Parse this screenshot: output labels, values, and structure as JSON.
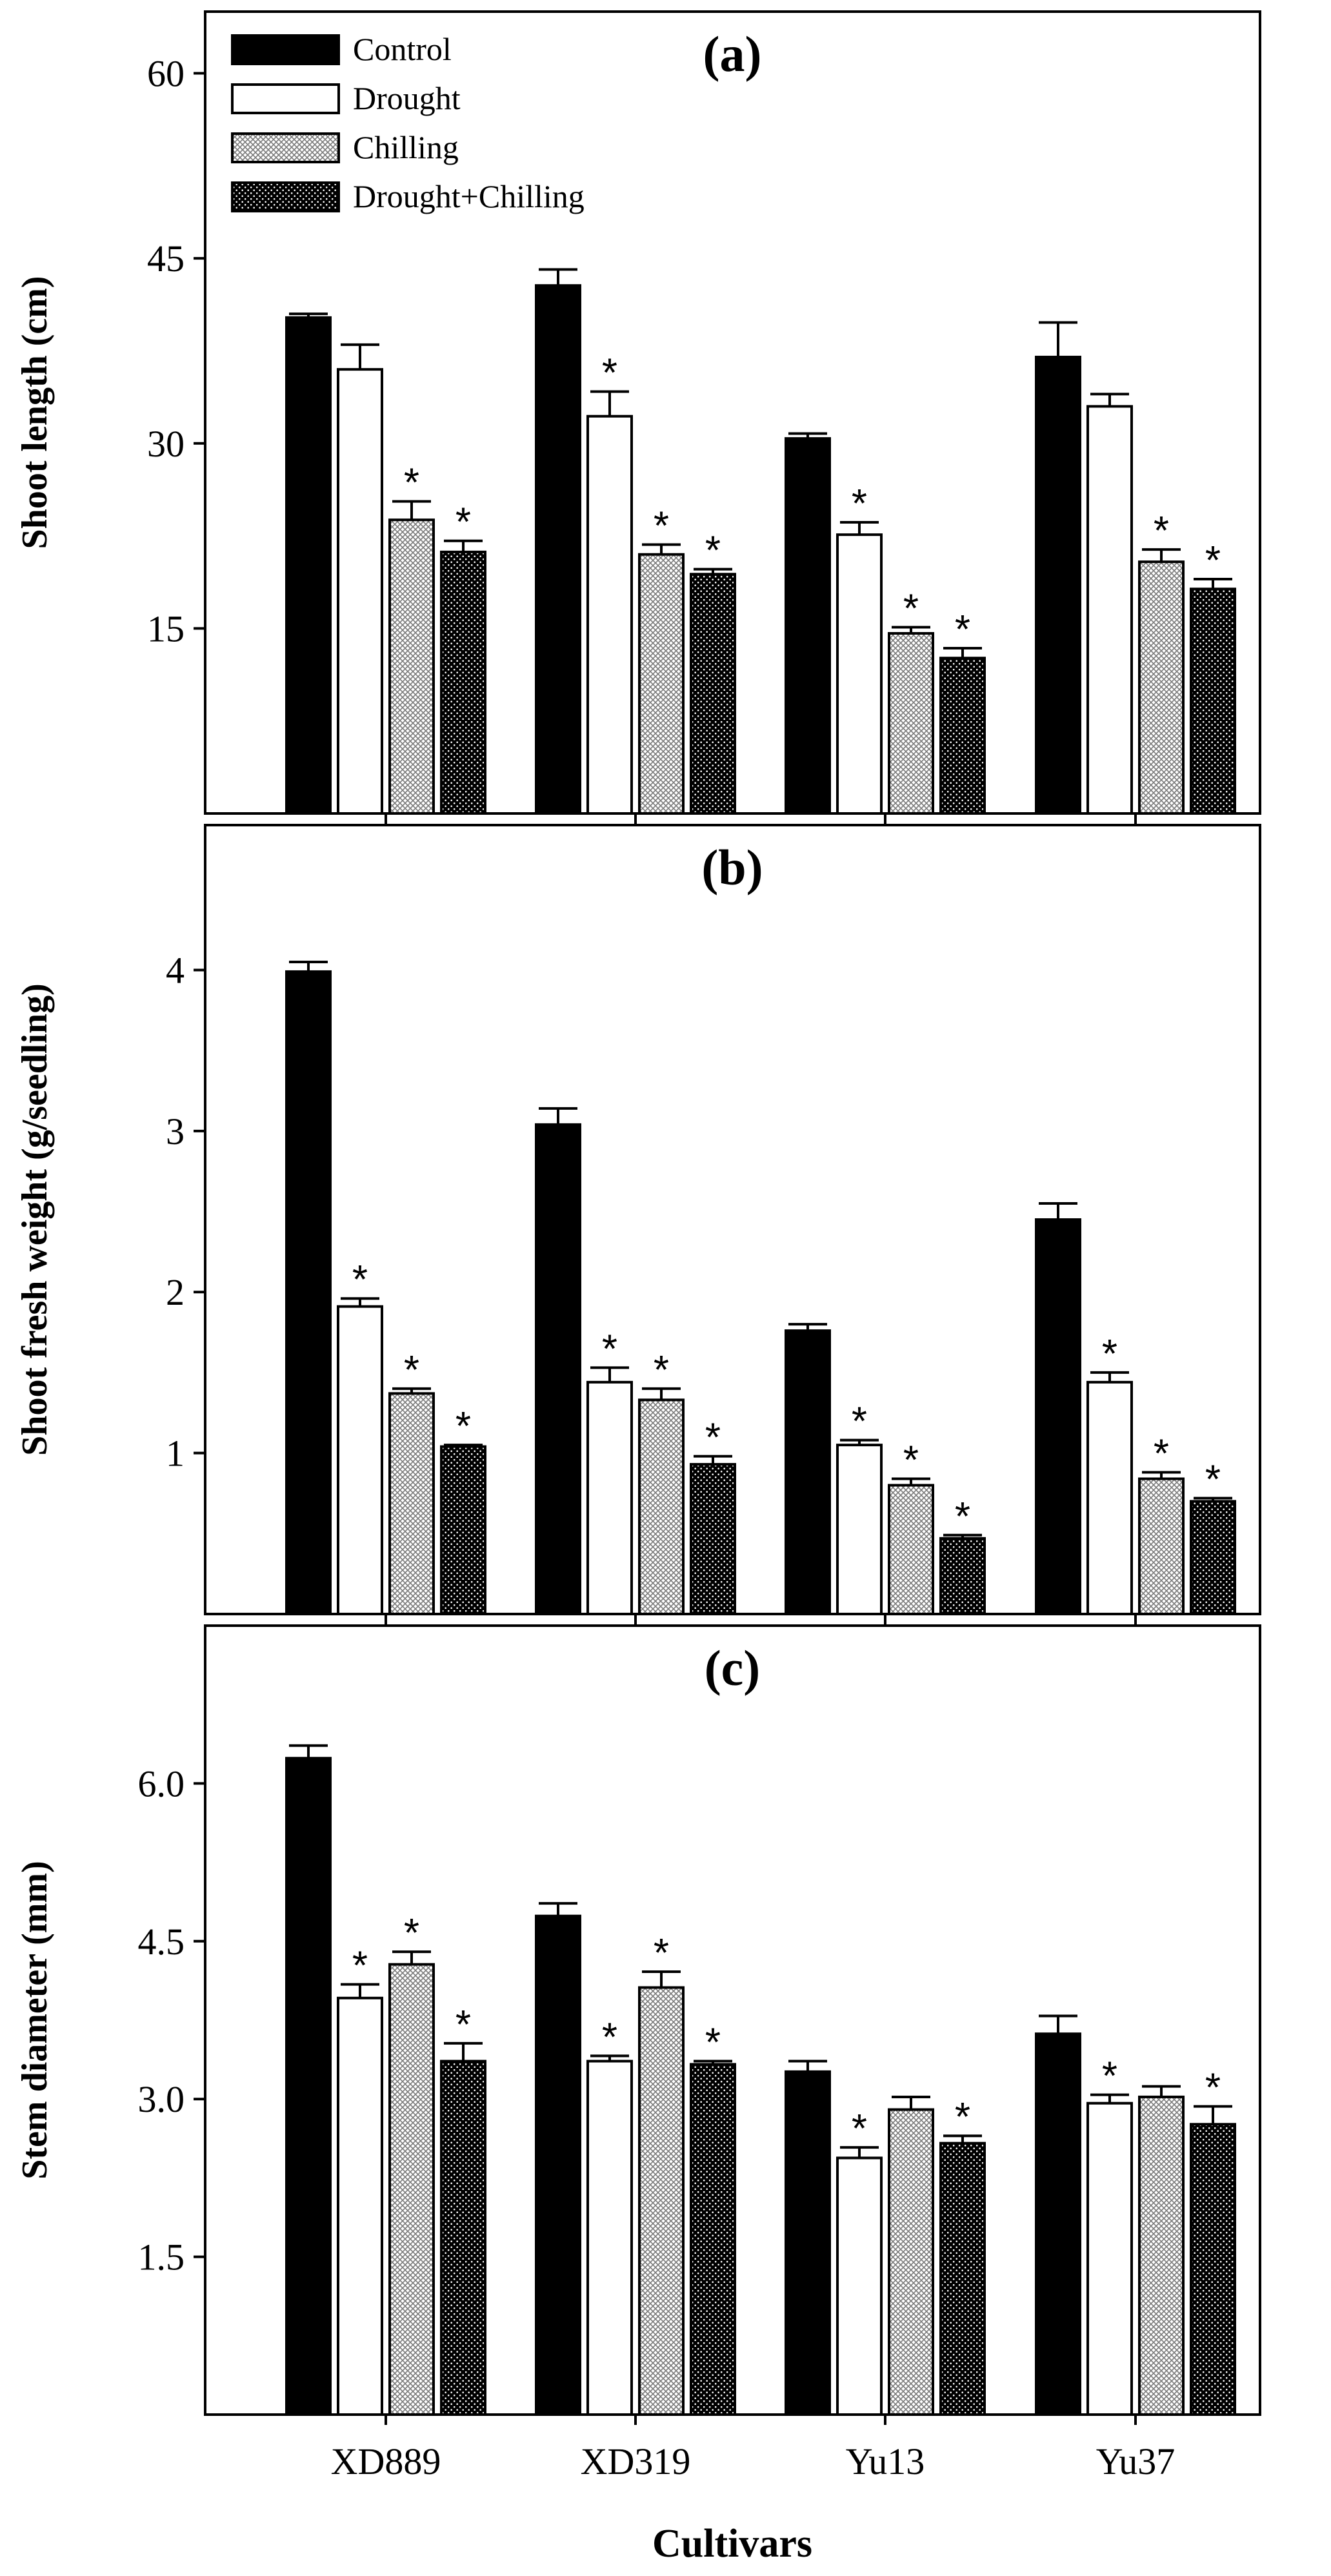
{
  "figure": {
    "x_axis_title": "Cultivars",
    "categories": [
      "XD889",
      "XD319",
      "Yu13",
      "Yu37"
    ],
    "legend": [
      {
        "label": "Control",
        "fill": "solid-black"
      },
      {
        "label": "Drought",
        "fill": "white"
      },
      {
        "label": "Chilling",
        "fill": "fine-crosshatch"
      },
      {
        "label": "Drought+Chilling",
        "fill": "black-dotted"
      }
    ],
    "colors": {
      "ink": "#000000",
      "background": "#ffffff",
      "hatch_gray": "#9a9a9a"
    }
  },
  "chart_data": [
    {
      "type": "bar",
      "panel": "(a)",
      "title": "(a)",
      "xlabel": "",
      "ylabel": "Shoot length (cm)",
      "ylim": [
        0,
        65
      ],
      "yticks": [
        15,
        30,
        45,
        60
      ],
      "ytick_labels": [
        "15",
        "30",
        "45",
        "60"
      ],
      "categories": [
        "XD889",
        "XD319",
        "Yu13",
        "Yu37"
      ],
      "series": [
        {
          "name": "Control",
          "values": [
            40.2,
            42.8,
            30.4,
            37.0
          ],
          "errors": [
            0.3,
            1.3,
            0.4,
            2.8
          ],
          "significant": [
            false,
            false,
            false,
            false
          ]
        },
        {
          "name": "Drought",
          "values": [
            36.0,
            32.2,
            22.6,
            33.0
          ],
          "errors": [
            2.0,
            2.0,
            1.0,
            1.0
          ],
          "significant": [
            false,
            true,
            true,
            false
          ]
        },
        {
          "name": "Chilling",
          "values": [
            23.8,
            21.0,
            14.6,
            20.4
          ],
          "errors": [
            1.5,
            0.8,
            0.5,
            1.0
          ],
          "significant": [
            true,
            true,
            true,
            true
          ]
        },
        {
          "name": "Drought+Chilling",
          "values": [
            21.2,
            19.4,
            12.6,
            18.2
          ],
          "errors": [
            0.9,
            0.4,
            0.8,
            0.8
          ],
          "significant": [
            true,
            true,
            true,
            true
          ]
        }
      ]
    },
    {
      "type": "bar",
      "panel": "(b)",
      "title": "(b)",
      "xlabel": "",
      "ylabel": "Shoot fresh weight (g/seedling)",
      "ylim": [
        0,
        4.9
      ],
      "yticks": [
        1,
        2,
        3,
        4
      ],
      "ytick_labels": [
        "1",
        "2",
        "3",
        "4"
      ],
      "categories": [
        "XD889",
        "XD319",
        "Yu13",
        "Yu37"
      ],
      "series": [
        {
          "name": "Control",
          "values": [
            3.99,
            3.04,
            1.76,
            2.45
          ],
          "errors": [
            0.06,
            0.1,
            0.04,
            0.1
          ],
          "significant": [
            false,
            false,
            false,
            false
          ]
        },
        {
          "name": "Drought",
          "values": [
            1.91,
            1.44,
            1.05,
            1.44
          ],
          "errors": [
            0.05,
            0.09,
            0.03,
            0.06
          ],
          "significant": [
            true,
            true,
            true,
            true
          ]
        },
        {
          "name": "Chilling",
          "values": [
            1.37,
            1.33,
            0.8,
            0.84
          ],
          "errors": [
            0.03,
            0.07,
            0.04,
            0.04
          ],
          "significant": [
            true,
            true,
            true,
            true
          ]
        },
        {
          "name": "Drought+Chilling",
          "values": [
            1.04,
            0.93,
            0.47,
            0.7
          ],
          "errors": [
            0.01,
            0.05,
            0.02,
            0.02
          ],
          "significant": [
            true,
            true,
            true,
            true
          ]
        }
      ]
    },
    {
      "type": "bar",
      "panel": "(c)",
      "title": "(c)",
      "xlabel": "Cultivars",
      "ylabel": "Stem diameter (mm)",
      "ylim": [
        0,
        7.5
      ],
      "yticks": [
        1.5,
        3.0,
        4.5,
        6.0
      ],
      "ytick_labels": [
        "1.5",
        "3.0",
        "4.5",
        "6.0"
      ],
      "categories": [
        "XD889",
        "XD319",
        "Yu13",
        "Yu37"
      ],
      "series": [
        {
          "name": "Control",
          "values": [
            6.24,
            4.74,
            3.26,
            3.62
          ],
          "errors": [
            0.12,
            0.12,
            0.1,
            0.17
          ],
          "significant": [
            false,
            false,
            false,
            false
          ]
        },
        {
          "name": "Drought",
          "values": [
            3.96,
            3.36,
            2.44,
            2.96
          ],
          "errors": [
            0.13,
            0.05,
            0.1,
            0.08
          ],
          "significant": [
            true,
            true,
            true,
            true
          ]
        },
        {
          "name": "Chilling",
          "values": [
            4.28,
            4.06,
            2.9,
            3.02
          ],
          "errors": [
            0.12,
            0.15,
            0.12,
            0.1
          ],
          "significant": [
            true,
            true,
            false,
            false
          ]
        },
        {
          "name": "Drought+Chilling",
          "values": [
            3.36,
            3.33,
            2.58,
            2.76
          ],
          "errors": [
            0.17,
            0.03,
            0.07,
            0.17
          ],
          "significant": [
            true,
            true,
            true,
            true
          ]
        }
      ]
    }
  ]
}
